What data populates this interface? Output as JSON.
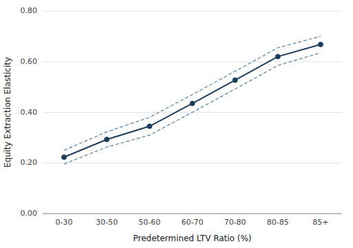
{
  "chart_data": {
    "type": "line",
    "xlabel": "Predetermined LTV Ratio (%)",
    "ylabel": "Equity Extraction Elasticity",
    "categories": [
      "0-30",
      "30-50",
      "50-60",
      "60-70",
      "70-80",
      "80-85",
      "85+"
    ],
    "series": [
      {
        "color": "#5580a0",
        "line_style": "dashed",
        "values": [
          0.25,
          0.323,
          0.38,
          0.47,
          0.562,
          0.655,
          0.7
        ]
      },
      {
        "color": "#5580a0",
        "line_style": "dashed",
        "values": [
          0.196,
          0.263,
          0.31,
          0.4,
          0.492,
          0.585,
          0.635
        ]
      },
      {
        "color": "#1c3d5c",
        "line_style": "solid",
        "marker": "circle",
        "values": [
          0.223,
          0.293,
          0.345,
          0.435,
          0.527,
          0.62,
          0.668
        ]
      }
    ],
    "ylim": [
      0.0,
      0.8
    ],
    "yticks": [
      {
        "value": 0.0,
        "label": "0.00"
      },
      {
        "value": 0.2,
        "label": "0.20"
      },
      {
        "value": 0.4,
        "label": "0.40"
      },
      {
        "value": 0.6,
        "label": "0.60"
      },
      {
        "value": 0.8,
        "label": "0.80"
      }
    ],
    "grid": true
  }
}
